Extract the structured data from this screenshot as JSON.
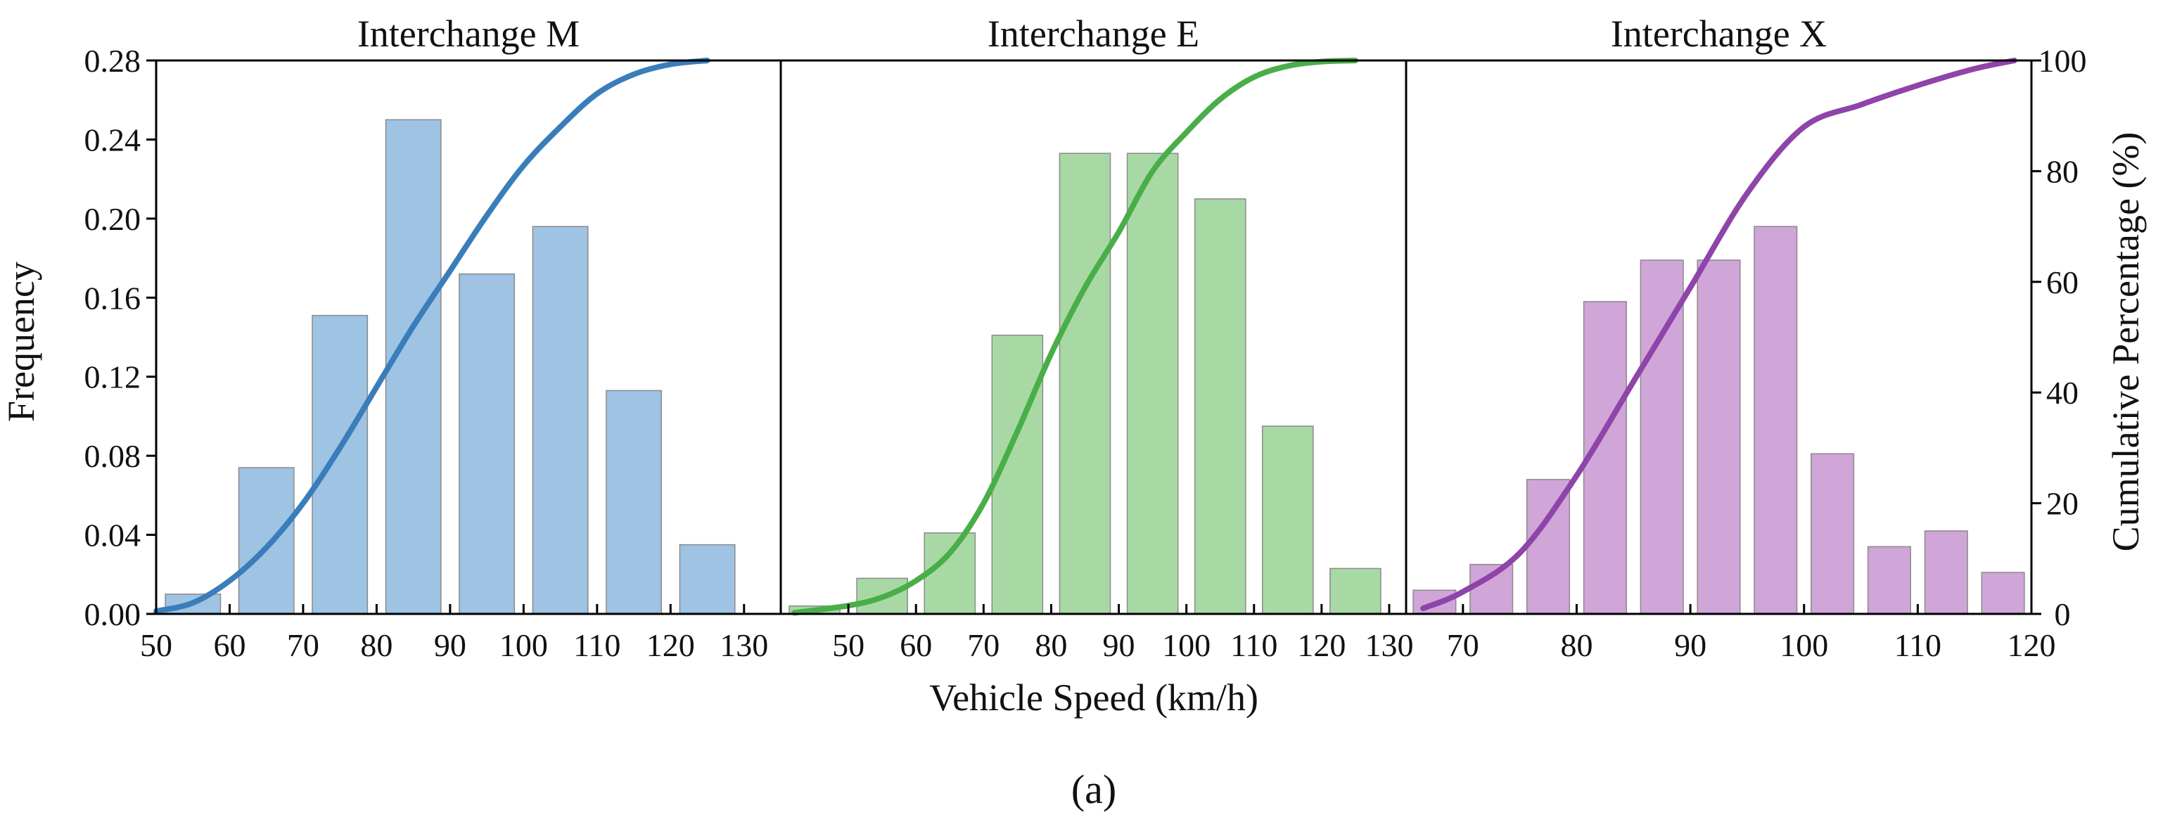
{
  "figure": {
    "caption": "(a)",
    "shared_xlabel": "Vehicle Speed (km/h)",
    "left_ylabel": "Frequency",
    "right_ylabel": "Cumulative Percentage (%)"
  },
  "chart_data": [
    {
      "type": "bar",
      "title": "Interchange M",
      "xlabel": "Vehicle Speed (km/h)",
      "ylabel": "Frequency",
      "xlim": [
        50,
        135
      ],
      "ylim": [
        0,
        0.28
      ],
      "x_ticks": [
        "50",
        "60",
        "70",
        "80",
        "90",
        "100",
        "110",
        "120",
        "130"
      ],
      "y_ticks": [
        "0.00",
        "0.04",
        "0.08",
        "0.12",
        "0.16",
        "0.20",
        "0.24",
        "0.28"
      ],
      "bin_width": 10,
      "bar_width": 7.5,
      "bar_color": "#9ec3e3",
      "categories": [
        "50-60",
        "60-70",
        "70-80",
        "80-90",
        "90-100",
        "100-110",
        "110-120",
        "120-130"
      ],
      "bin_starts": [
        50,
        60,
        70,
        80,
        90,
        100,
        110,
        120
      ],
      "values": [
        0.01,
        0.074,
        0.151,
        0.25,
        0.172,
        0.196,
        0.113,
        0.035
      ],
      "cumulative": {
        "name": "Cumulative Percentage (%)",
        "color": "#3a7dbb",
        "ylim": [
          0,
          100
        ],
        "x": [
          50,
          55,
          60,
          65,
          70,
          75,
          80,
          85,
          90,
          95,
          100,
          105,
          110,
          115,
          120,
          125
        ],
        "y": [
          0.5,
          2,
          6,
          12,
          20,
          30,
          41,
          52,
          62,
          72,
          81,
          88,
          94,
          97.5,
          99.3,
          100
        ]
      }
    },
    {
      "type": "bar",
      "title": "Interchange E",
      "xlabel": "Vehicle Speed (km/h)",
      "ylabel": "Frequency",
      "xlim": [
        40,
        132.5
      ],
      "ylim": [
        0,
        0.28
      ],
      "x_ticks": [
        "50",
        "60",
        "70",
        "80",
        "90",
        "100",
        "110",
        "120",
        "130"
      ],
      "y_ticks": [
        "0.00",
        "0.04",
        "0.08",
        "0.12",
        "0.16",
        "0.20",
        "0.24",
        "0.28"
      ],
      "bin_width": 10,
      "bar_width": 7.5,
      "bar_color": "#a8d9a5",
      "categories": [
        "40-50",
        "50-60",
        "60-70",
        "70-80",
        "80-90",
        "90-100",
        "100-110",
        "110-120",
        "120-130"
      ],
      "bin_starts": [
        40,
        50,
        60,
        70,
        80,
        90,
        100,
        110,
        120
      ],
      "values": [
        0.004,
        0.018,
        0.041,
        0.141,
        0.233,
        0.233,
        0.21,
        0.095,
        0.023
      ],
      "cumulative": {
        "name": "Cumulative Percentage (%)",
        "color": "#4aae48",
        "ylim": [
          0,
          100
        ],
        "x": [
          42,
          50,
          55,
          60,
          65,
          70,
          75,
          80,
          85,
          90,
          95,
          100,
          105,
          110,
          115,
          120,
          125
        ],
        "y": [
          0.2,
          1.5,
          3,
          6,
          11,
          20,
          33,
          47,
          59,
          69,
          80,
          87,
          93,
          97,
          99,
          99.8,
          100
        ]
      }
    },
    {
      "type": "bar",
      "title": "Interchange X",
      "xlabel": "Vehicle Speed (km/h)",
      "ylabel": "Cumulative Percentage (%)",
      "xlim": [
        65,
        120
      ],
      "ylim": [
        0,
        100
      ],
      "freq_ylim": [
        0,
        0.28
      ],
      "x_ticks": [
        "70",
        "80",
        "90",
        "100",
        "110",
        "120"
      ],
      "y_ticks": [
        "0",
        "20",
        "40",
        "60",
        "80",
        "100"
      ],
      "bin_width": 5,
      "bar_width": 3.75,
      "bar_color": "#d0a5d8",
      "categories": [
        "65-70",
        "70-75",
        "75-80",
        "80-85",
        "85-90",
        "90-95",
        "95-100",
        "100-105",
        "105-110",
        "110-115",
        "115-120"
      ],
      "bin_starts": [
        65,
        70,
        75,
        80,
        85,
        90,
        95,
        100,
        105,
        110,
        115
      ],
      "values": [
        0.012,
        0.025,
        0.068,
        0.158,
        0.179,
        0.179,
        0.196,
        0.081,
        0.034,
        0.042,
        0.021
      ],
      "cumulative": {
        "name": "Cumulative Percentage (%)",
        "color": "#8e44a8",
        "ylim": [
          0,
          100
        ],
        "x": [
          66.5,
          70,
          75,
          80,
          85,
          90,
          95,
          100,
          105,
          110,
          115,
          118.5
        ],
        "y": [
          1,
          4,
          11,
          25,
          42,
          59,
          76,
          88,
          92,
          95.5,
          98.5,
          100
        ]
      }
    }
  ]
}
